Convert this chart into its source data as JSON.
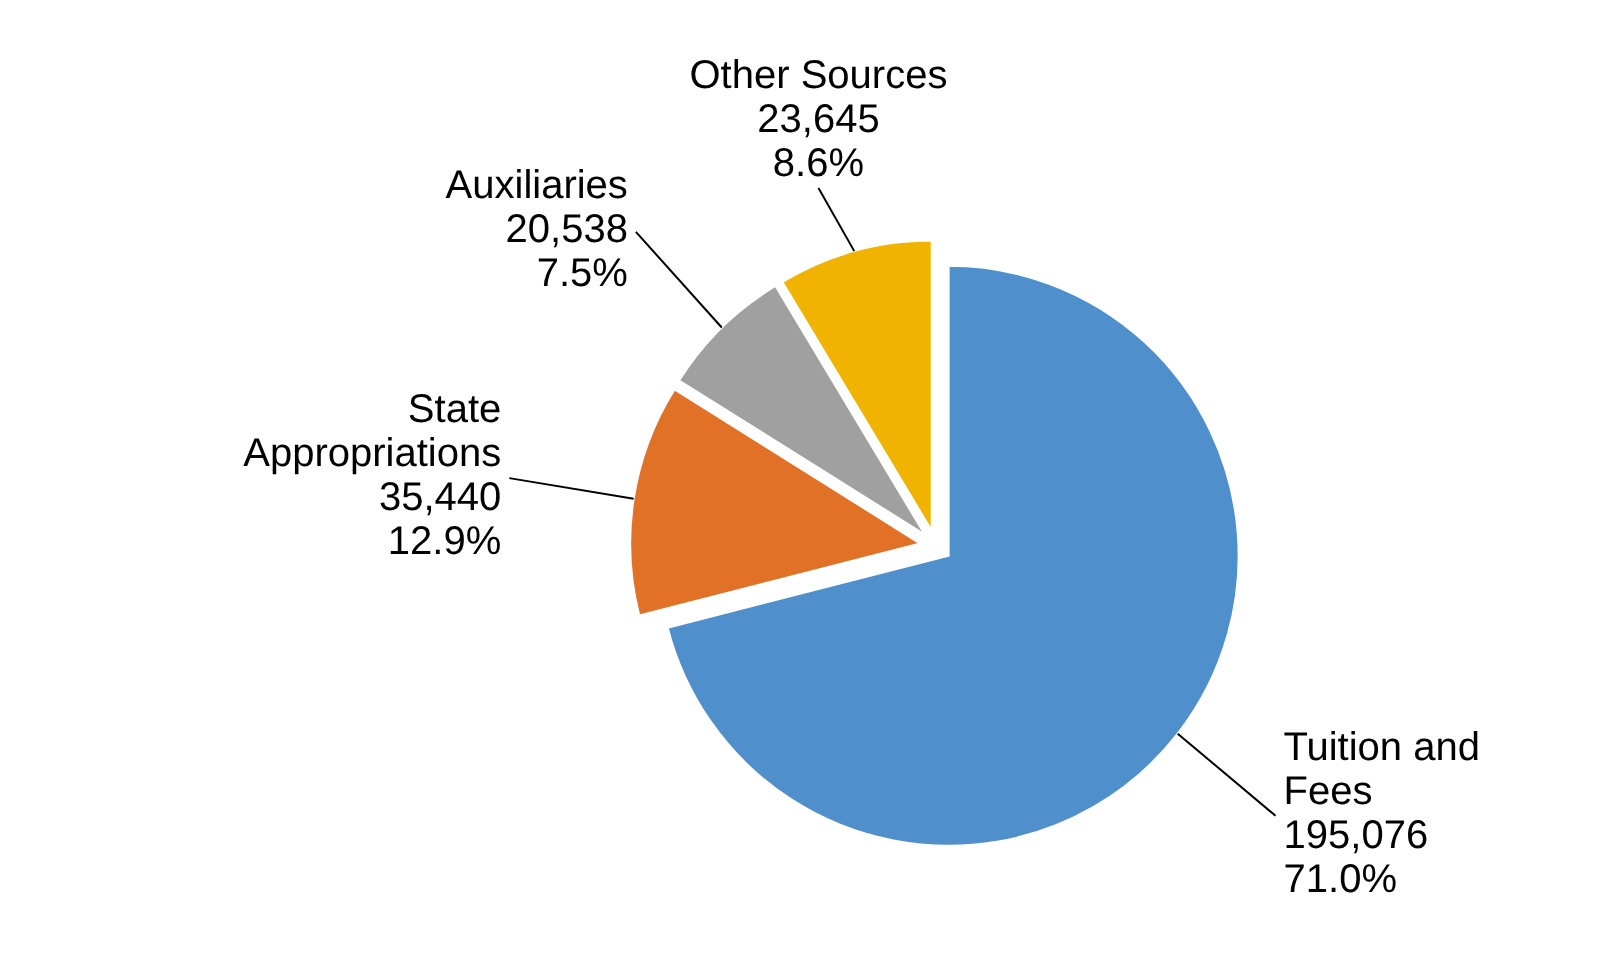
{
  "chart_data": {
    "type": "pie",
    "categories": [
      "Tuition and Fees",
      "State Appropriations",
      "Auxiliaries",
      "Other Sources"
    ],
    "values": [
      195076,
      35440,
      20538,
      23645
    ],
    "colors": [
      "#4f8fcb",
      "#e07127",
      "#a0a0a0",
      "#f0b400"
    ],
    "value_labels": [
      "195,076\n71.0%",
      "35,440\n12.9%",
      "20,538\n7.5%",
      "23,645\n8.6%"
    ]
  }
}
